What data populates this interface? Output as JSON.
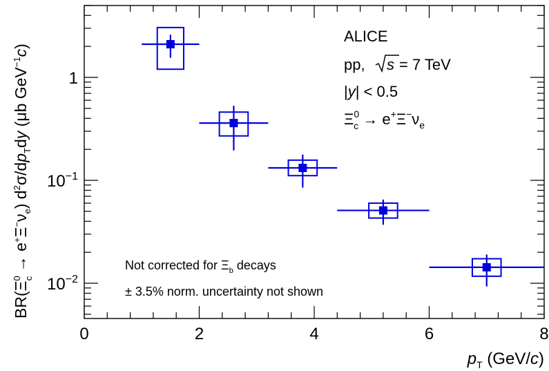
{
  "chart_data": {
    "type": "scatter",
    "log_y": true,
    "xlim": [
      0,
      8
    ],
    "ylim": [
      0.005,
      5
    ],
    "x_ticks": [
      0,
      2,
      4,
      6,
      8
    ],
    "x_tick_labels": [
      "0",
      "2",
      "4",
      "6",
      "8"
    ],
    "y_major_ticks": [
      0.01,
      0.1,
      1
    ],
    "grid": false,
    "color": "#0000dd",
    "xlabel": "p_T (GeV/c)",
    "ylabel": "BR(Ξc0 → e+Ξ−νe) d2σ/dpTdy (μb GeV−1c)",
    "points": [
      {
        "x": 1.5,
        "x_low": 1.0,
        "x_high": 2.0,
        "y": 2.1,
        "stat_low": 1.55,
        "stat_high": 2.6,
        "syst_low": 1.2,
        "syst_high": 3.05,
        "box_x_low": 1.27,
        "box_x_high": 1.73
      },
      {
        "x": 2.6,
        "x_low": 2.0,
        "x_high": 3.2,
        "y": 0.36,
        "stat_low": 0.195,
        "stat_high": 0.53,
        "syst_low": 0.27,
        "syst_high": 0.46,
        "box_x_low": 2.35,
        "box_x_high": 2.85
      },
      {
        "x": 3.8,
        "x_low": 3.2,
        "x_high": 4.4,
        "y": 0.132,
        "stat_low": 0.085,
        "stat_high": 0.178,
        "syst_low": 0.111,
        "syst_high": 0.157,
        "box_x_low": 3.55,
        "box_x_high": 4.05
      },
      {
        "x": 5.2,
        "x_low": 4.4,
        "x_high": 6.0,
        "y": 0.051,
        "stat_low": 0.037,
        "stat_high": 0.065,
        "syst_low": 0.043,
        "syst_high": 0.06,
        "box_x_low": 4.95,
        "box_x_high": 5.45
      },
      {
        "x": 7.0,
        "x_low": 6.0,
        "x_high": 8.0,
        "y": 0.0143,
        "stat_low": 0.0093,
        "stat_high": 0.019,
        "syst_low": 0.0117,
        "syst_high": 0.0173,
        "box_x_low": 6.75,
        "box_x_high": 7.25
      }
    ],
    "annotations": {
      "experiment": "ALICE",
      "system_prefix": "pp,",
      "energy": "= 7 TeV",
      "rapidity": "< 0.5",
      "decay_arrow": "→ e",
      "not_corrected_prefix": "Not corrected for Ξ",
      "not_corrected_suffix": "decays",
      "norm_uncertainty": "± 3.5% norm. uncertainty not shown"
    }
  }
}
